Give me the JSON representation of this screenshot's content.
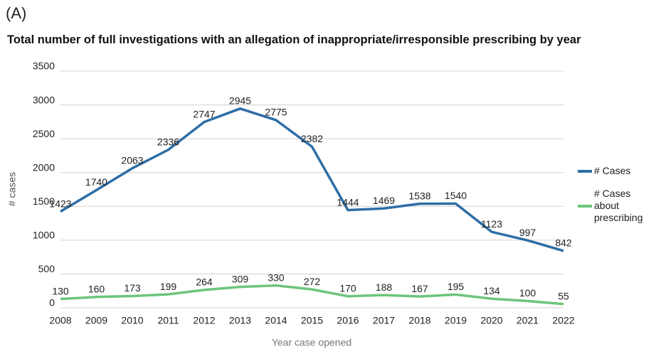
{
  "chart_data": {
    "type": "line",
    "panel_label": "(A)",
    "title": "Total number of full investigations with an allegation of inappropriate/irresponsible prescribing by year",
    "x_label": "Year case opened",
    "y_label": "# cases",
    "categories": [
      "2008",
      "2009",
      "2010",
      "2011",
      "2012",
      "2013",
      "2014",
      "2015",
      "2016",
      "2017",
      "2018",
      "2019",
      "2020",
      "2021",
      "2022"
    ],
    "series": [
      {
        "name": "# Cases",
        "color": "#2e6ea6",
        "values": [
          1423,
          1740,
          2063,
          2336,
          2747,
          2945,
          2775,
          2382,
          1444,
          1469,
          1538,
          1540,
          1123,
          997,
          842
        ]
      },
      {
        "name": "# Cases about prescribing",
        "color": "#6cc57a",
        "values": [
          130,
          160,
          173,
          199,
          264,
          309,
          330,
          272,
          170,
          188,
          167,
          195,
          134,
          100,
          55
        ]
      }
    ],
    "ylim": [
      0,
      3500
    ],
    "yticks": [
      0,
      500,
      1000,
      1500,
      2000,
      2500,
      3000,
      3500
    ],
    "grid": true,
    "legend": "right"
  }
}
